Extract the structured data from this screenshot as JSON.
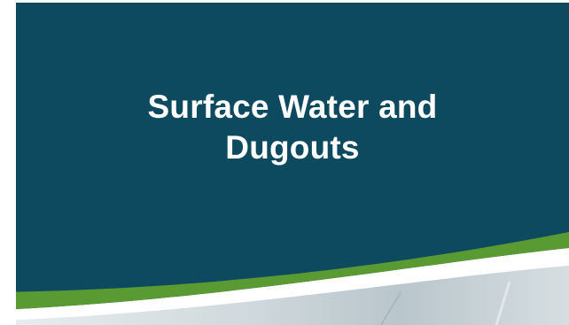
{
  "slide": {
    "title_line_1": "Surface Water and",
    "title_line_2": "Dugouts"
  },
  "colors": {
    "background": "#0d4a60",
    "accent_stripe": "#5a9a32",
    "white_band": "#ffffff",
    "photo_tint": "#c9d3d8",
    "title_text": "#ffffff"
  }
}
